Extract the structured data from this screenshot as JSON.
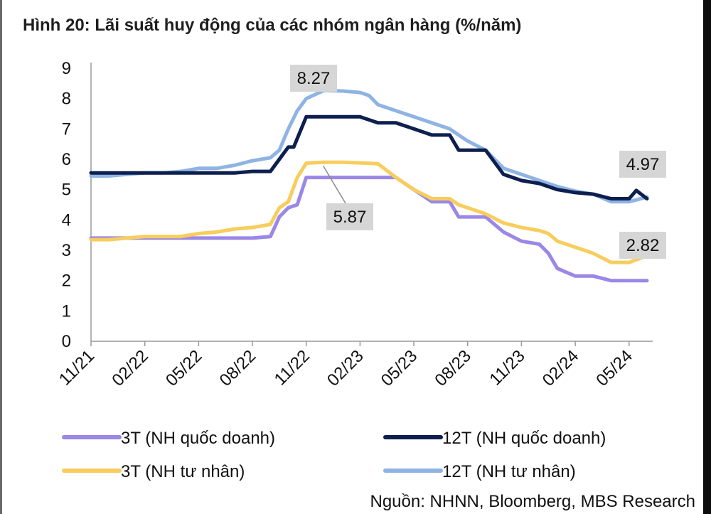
{
  "title": "Hình 20: Lãi suất huy động của các nhóm ngân hàng (%/năm)",
  "source": "Nguồn: NHNN, Bloomberg, MBS Research",
  "chart_data": {
    "type": "line",
    "title": "Hình 20: Lãi suất huy động của các nhóm ngân hàng (%/năm)",
    "xlabel": "",
    "ylabel": "",
    "ylim": [
      0,
      9
    ],
    "yticks": [
      "0",
      "1",
      "2",
      "3",
      "4",
      "5",
      "6",
      "7",
      "8",
      "9"
    ],
    "x_tick_labels": [
      "11/21",
      "02/22",
      "05/22",
      "08/22",
      "11/22",
      "02/23",
      "05/23",
      "08/23",
      "11/23",
      "02/24",
      "05/24"
    ],
    "x_range_months": [
      0,
      31
    ],
    "grid": false,
    "legend_position": "bottom",
    "series": [
      {
        "name": "3T (NH quốc doanh)",
        "color": "#9b87e6",
        "points": [
          [
            0,
            3.4
          ],
          [
            1,
            3.4
          ],
          [
            2,
            3.4
          ],
          [
            3,
            3.4
          ],
          [
            4,
            3.4
          ],
          [
            5,
            3.4
          ],
          [
            6,
            3.4
          ],
          [
            7,
            3.4
          ],
          [
            8,
            3.4
          ],
          [
            9,
            3.4
          ],
          [
            10,
            3.45
          ],
          [
            10.5,
            4.1
          ],
          [
            11,
            4.4
          ],
          [
            11.5,
            4.5
          ],
          [
            12,
            5.4
          ],
          [
            13,
            5.4
          ],
          [
            14,
            5.4
          ],
          [
            15,
            5.4
          ],
          [
            16,
            5.4
          ],
          [
            17,
            5.4
          ],
          [
            18,
            5.0
          ],
          [
            19,
            4.6
          ],
          [
            20,
            4.6
          ],
          [
            20.5,
            4.1
          ],
          [
            21,
            4.1
          ],
          [
            22,
            4.1
          ],
          [
            23,
            3.6
          ],
          [
            24,
            3.3
          ],
          [
            25,
            3.2
          ],
          [
            25.5,
            2.9
          ],
          [
            26,
            2.4
          ],
          [
            27,
            2.15
          ],
          [
            28,
            2.15
          ],
          [
            29,
            2.0
          ],
          [
            30,
            2.0
          ],
          [
            31,
            2.0
          ]
        ]
      },
      {
        "name": "12T (NH quốc doanh)",
        "color": "#0d1f4f",
        "points": [
          [
            0,
            5.55
          ],
          [
            1,
            5.55
          ],
          [
            2,
            5.55
          ],
          [
            3,
            5.55
          ],
          [
            4,
            5.55
          ],
          [
            5,
            5.55
          ],
          [
            6,
            5.55
          ],
          [
            7,
            5.55
          ],
          [
            8,
            5.55
          ],
          [
            9,
            5.6
          ],
          [
            10,
            5.6
          ],
          [
            11,
            6.4
          ],
          [
            11.3,
            6.4
          ],
          [
            12,
            7.4
          ],
          [
            13,
            7.4
          ],
          [
            14,
            7.4
          ],
          [
            15,
            7.4
          ],
          [
            16,
            7.2
          ],
          [
            17,
            7.2
          ],
          [
            18,
            7.0
          ],
          [
            19,
            6.8
          ],
          [
            20,
            6.8
          ],
          [
            20.5,
            6.3
          ],
          [
            21,
            6.3
          ],
          [
            22,
            6.3
          ],
          [
            23,
            5.5
          ],
          [
            24,
            5.3
          ],
          [
            25,
            5.2
          ],
          [
            26,
            5.0
          ],
          [
            27,
            4.9
          ],
          [
            28,
            4.85
          ],
          [
            29,
            4.7
          ],
          [
            30,
            4.7
          ],
          [
            30.4,
            4.97
          ],
          [
            31,
            4.7
          ]
        ]
      },
      {
        "name": "3T (NH tư nhân)",
        "color": "#f7cd5e",
        "points": [
          [
            0,
            3.35
          ],
          [
            1,
            3.35
          ],
          [
            2,
            3.4
          ],
          [
            3,
            3.45
          ],
          [
            4,
            3.45
          ],
          [
            5,
            3.45
          ],
          [
            6,
            3.55
          ],
          [
            7,
            3.6
          ],
          [
            8,
            3.7
          ],
          [
            9,
            3.75
          ],
          [
            10,
            3.85
          ],
          [
            10.5,
            4.4
          ],
          [
            11,
            4.6
          ],
          [
            11.5,
            5.4
          ],
          [
            12,
            5.87
          ],
          [
            13,
            5.9
          ],
          [
            14,
            5.9
          ],
          [
            15,
            5.88
          ],
          [
            16,
            5.85
          ],
          [
            17,
            5.4
          ],
          [
            18,
            5.0
          ],
          [
            19,
            4.7
          ],
          [
            20,
            4.7
          ],
          [
            20.5,
            4.5
          ],
          [
            21,
            4.4
          ],
          [
            22,
            4.2
          ],
          [
            23,
            3.9
          ],
          [
            24,
            3.75
          ],
          [
            25,
            3.65
          ],
          [
            25.5,
            3.55
          ],
          [
            26,
            3.3
          ],
          [
            27,
            3.1
          ],
          [
            28,
            2.9
          ],
          [
            29,
            2.6
          ],
          [
            30,
            2.6
          ],
          [
            31,
            2.82
          ]
        ]
      },
      {
        "name": "12T (NH tư nhân)",
        "color": "#8fb4e3",
        "points": [
          [
            0,
            5.45
          ],
          [
            1,
            5.45
          ],
          [
            2,
            5.5
          ],
          [
            3,
            5.55
          ],
          [
            4,
            5.55
          ],
          [
            5,
            5.6
          ],
          [
            6,
            5.7
          ],
          [
            7,
            5.7
          ],
          [
            8,
            5.8
          ],
          [
            9,
            5.95
          ],
          [
            10,
            6.05
          ],
          [
            10.5,
            6.3
          ],
          [
            11,
            7.0
          ],
          [
            11.5,
            7.6
          ],
          [
            12,
            8.0
          ],
          [
            13,
            8.27
          ],
          [
            14,
            8.25
          ],
          [
            15,
            8.2
          ],
          [
            15.5,
            8.1
          ],
          [
            16,
            7.8
          ],
          [
            17,
            7.6
          ],
          [
            18,
            7.4
          ],
          [
            19,
            7.2
          ],
          [
            20,
            7.0
          ],
          [
            21,
            6.6
          ],
          [
            22,
            6.3
          ],
          [
            23,
            5.7
          ],
          [
            24,
            5.5
          ],
          [
            25,
            5.3
          ],
          [
            26,
            5.1
          ],
          [
            27,
            4.95
          ],
          [
            28,
            4.85
          ],
          [
            29,
            4.6
          ],
          [
            30,
            4.6
          ],
          [
            31,
            4.75
          ]
        ]
      }
    ],
    "annotations": [
      {
        "text": "8.27",
        "x": 13,
        "y": 8.27,
        "series": "12T (NH tư nhân)"
      },
      {
        "text": "5.87",
        "x": 12,
        "y": 5.87,
        "series": "3T (NH tư nhân)"
      },
      {
        "text": "4.97",
        "x": 30.4,
        "y": 4.97,
        "series": "12T (NH quốc doanh)"
      },
      {
        "text": "2.82",
        "x": 31,
        "y": 2.82,
        "series": "3T (NH tư nhân)"
      }
    ]
  }
}
